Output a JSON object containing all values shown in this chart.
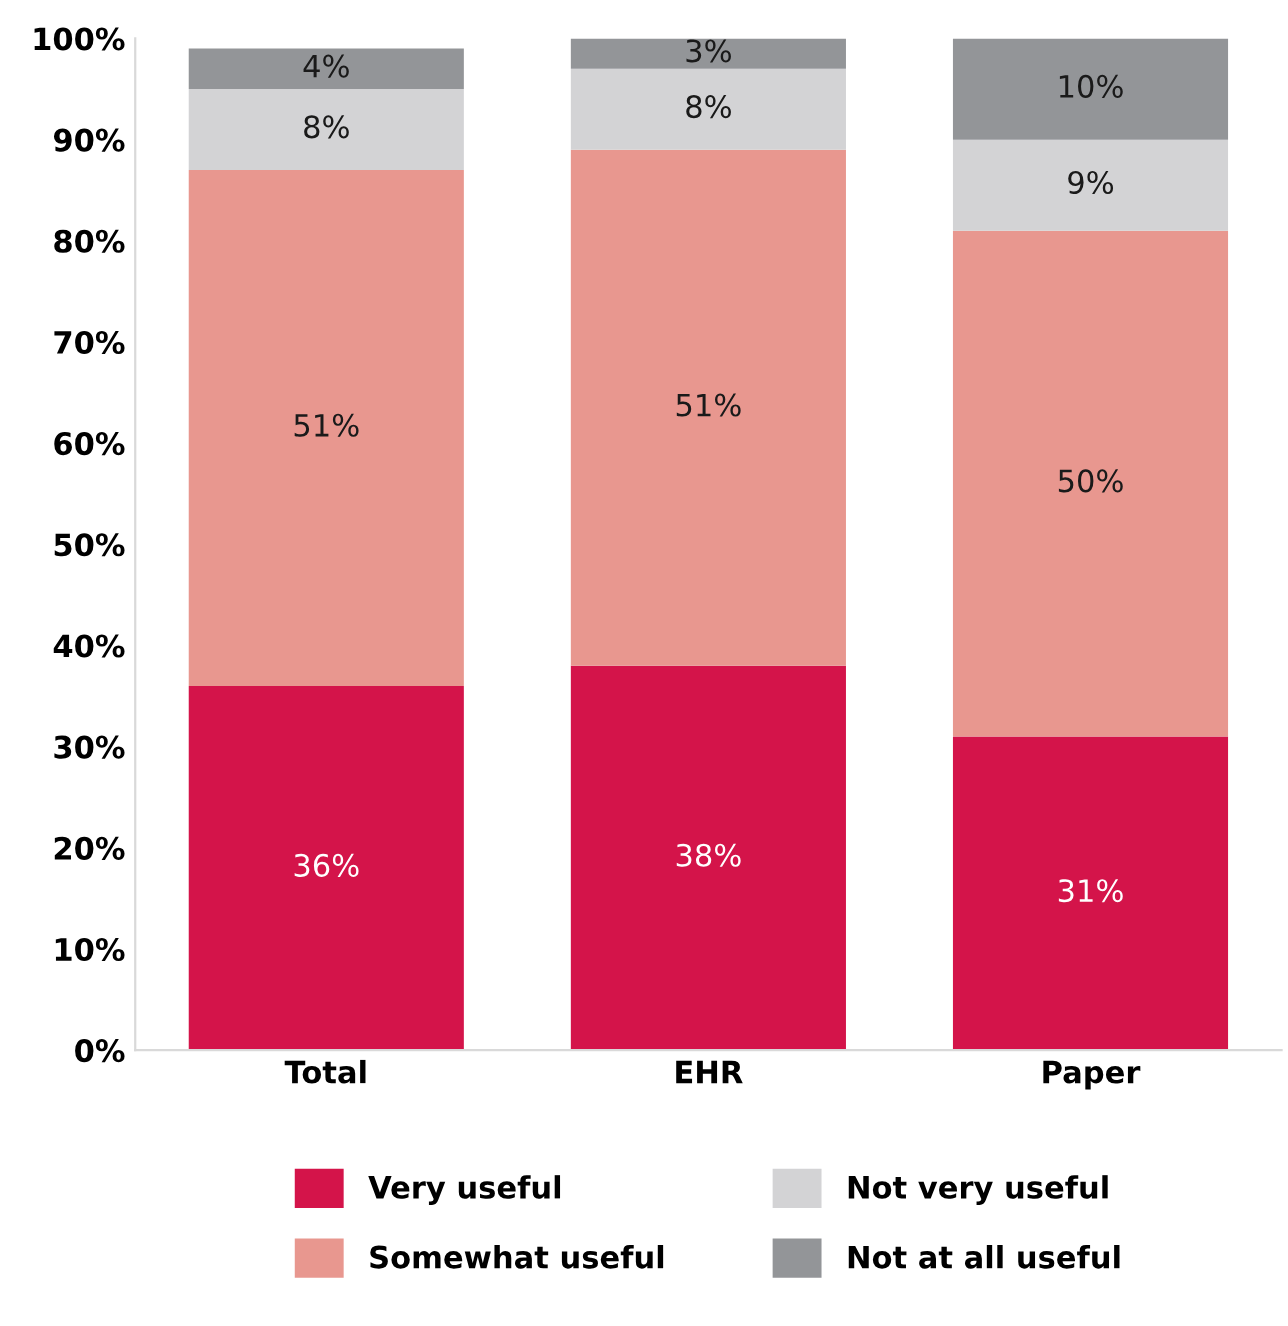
{
  "chart_data": {
    "type": "bar",
    "stacked": true,
    "categories": [
      "Total",
      "EHR",
      "Paper"
    ],
    "series": [
      {
        "name": "Very useful",
        "color": "#d4144a",
        "values": [
          36,
          38,
          31
        ],
        "value_labels": [
          "36%",
          "38%",
          "31%"
        ]
      },
      {
        "name": "Somewhat useful",
        "color": "#e8978f",
        "values": [
          51,
          51,
          50
        ],
        "value_labels": [
          "51%",
          "51%",
          "50%"
        ]
      },
      {
        "name": "Not very useful",
        "color": "#d3d3d5",
        "values": [
          8,
          8,
          9
        ],
        "value_labels": [
          "8%",
          "8%",
          "9%"
        ]
      },
      {
        "name": "Not at all useful",
        "color": "#939598",
        "values": [
          4,
          3,
          10
        ],
        "value_labels": [
          "4%",
          "3%",
          "10%"
        ]
      }
    ],
    "ylim": [
      0,
      100
    ],
    "yticks": [
      {
        "value": 0,
        "label": "0%"
      },
      {
        "value": 10,
        "label": "10%"
      },
      {
        "value": 20,
        "label": "20%"
      },
      {
        "value": 30,
        "label": "30%"
      },
      {
        "value": 40,
        "label": "40%"
      },
      {
        "value": 50,
        "label": "50%"
      },
      {
        "value": 60,
        "label": "60%"
      },
      {
        "value": 70,
        "label": "70%"
      },
      {
        "value": 80,
        "label": "80%"
      },
      {
        "value": 90,
        "label": "90%"
      },
      {
        "value": 100,
        "label": "100%"
      }
    ],
    "grid": false,
    "legend": "bottom"
  }
}
